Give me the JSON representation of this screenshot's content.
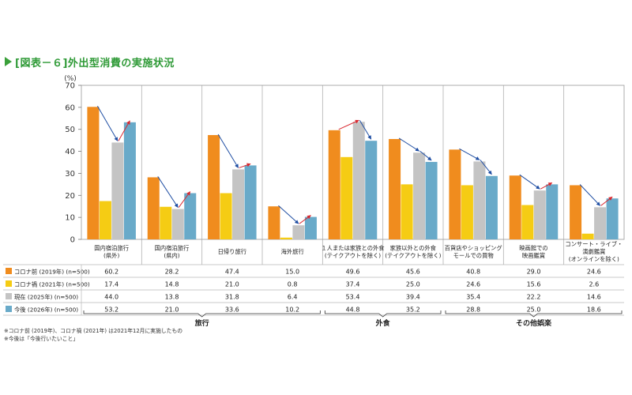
{
  "title": "[図表－６]外出型消費の実施状況",
  "chart_data": {
    "type": "bar",
    "title": "[図表－６]外出型消費の実施状況",
    "ylabel": "(%)",
    "ylim": [
      0,
      70
    ],
    "yticks": [
      0,
      10,
      20,
      30,
      40,
      50,
      60,
      70
    ],
    "categories": [
      [
        "国内宿泊旅行",
        "(県外)"
      ],
      [
        "国内宿泊旅行",
        "(県内)"
      ],
      [
        "日帰り旅行"
      ],
      [
        "海外旅行"
      ],
      [
        "１人または家族との外食",
        "(テイクアウトを除く)"
      ],
      [
        "家族以外との外食",
        "(テイクアウトを除く)"
      ],
      [
        "百貨店やショッピング",
        "モールでの買物"
      ],
      [
        "映画館での",
        "映画鑑賞"
      ],
      [
        "コンサート・ライブ・",
        "演劇鑑賞",
        "(オンラインを除く)"
      ]
    ],
    "series": [
      {
        "name": "コロナ前 (2019年) (n=500)",
        "color": "#f08c1e",
        "values": [
          60.2,
          28.2,
          47.4,
          15.0,
          49.6,
          45.6,
          40.8,
          29.0,
          24.6
        ]
      },
      {
        "name": "コロナ禍 (2021年) (n=500)",
        "color": "#f5cc14",
        "values": [
          17.4,
          14.8,
          21.0,
          0.8,
          37.4,
          25.0,
          24.6,
          15.6,
          2.6
        ]
      },
      {
        "name": "現在 (2025年) (n=500)",
        "color": "#c4c4c4",
        "values": [
          44.0,
          13.8,
          31.8,
          6.4,
          53.4,
          39.4,
          35.4,
          22.2,
          14.6
        ]
      },
      {
        "name": "今後 (2026年) (n=500)",
        "color": "#69aac9",
        "values": [
          53.2,
          21.0,
          33.6,
          10.2,
          44.8,
          35.2,
          28.8,
          25.0,
          18.6
        ]
      }
    ],
    "groups": [
      {
        "label": "旅行",
        "start": 0,
        "end": 3
      },
      {
        "label": "外食",
        "start": 4,
        "end": 5
      },
      {
        "label": "その他娯楽",
        "start": 6,
        "end": 8
      }
    ],
    "arrow_colors": {
      "up": "#d9282f",
      "down": "#1f4ea3"
    },
    "notes": [
      "※コロナ前 (2019年)、コロナ禍 (2021年) は2021年12月に実施したもの",
      "※今後は「今後行いたいこと」"
    ]
  }
}
